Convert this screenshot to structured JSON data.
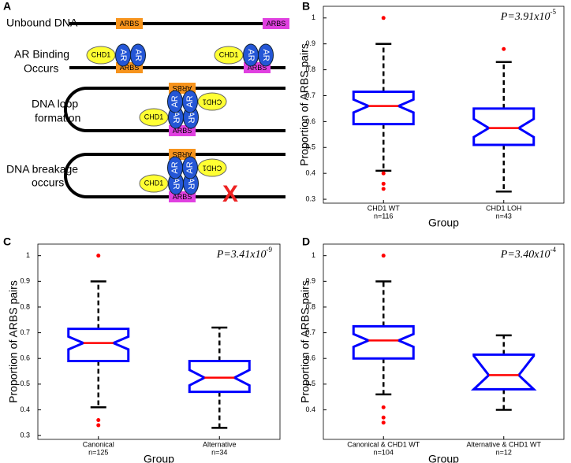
{
  "diagram": {
    "panel_label": "A",
    "steps": [
      {
        "lines": [
          "Unbound DNA"
        ]
      },
      {
        "lines": [
          "AR Binding",
          "Occurs"
        ]
      },
      {
        "lines": [
          "DNA loop",
          "formation"
        ]
      },
      {
        "lines": [
          "DNA breakage",
          "occurs"
        ]
      }
    ],
    "site_label": "ARBS",
    "protein_label": "CHD1",
    "receptor_label": "AR",
    "break_mark": "X"
  },
  "chart_data": [
    {
      "type": "box",
      "panel_label": "B",
      "categories": [
        "CHD1 WT",
        "CHD1 LOH"
      ],
      "n_labels": [
        "n=116",
        "n=43"
      ],
      "xlabel": "Group",
      "ylabel": "Proportion of ARBS pairs",
      "annotation": {
        "text": "P=3.91x10",
        "exponent": "-5"
      },
      "ylim": [
        0.285,
        1.045
      ],
      "yticks": [
        0.3,
        0.4,
        0.5,
        0.6,
        0.7,
        0.8,
        0.9,
        1
      ],
      "box_color": "#0000ff",
      "median_color": "#ff0000",
      "outlier_color": "#ff0000",
      "boxes": [
        {
          "whisker_low": 0.41,
          "q1": 0.59,
          "median": 0.66,
          "q3": 0.715,
          "whisker_high": 0.9,
          "notch": [
            0.635,
            0.685
          ],
          "outliers": [
            1.0,
            0.4,
            0.36,
            0.34
          ]
        },
        {
          "whisker_low": 0.33,
          "q1": 0.51,
          "median": 0.575,
          "q3": 0.65,
          "whisker_high": 0.83,
          "notch": [
            0.54,
            0.61
          ],
          "outliers": [
            0.88
          ]
        }
      ]
    },
    {
      "type": "box",
      "panel_label": "C",
      "categories": [
        "Canonical",
        "Alternative"
      ],
      "n_labels": [
        "n=125",
        "n=34"
      ],
      "xlabel": "Group",
      "ylabel": "Proportion of ARBS pairs",
      "annotation": {
        "text": "P=3.41x10",
        "exponent": "-9"
      },
      "ylim": [
        0.285,
        1.045
      ],
      "yticks": [
        0.3,
        0.4,
        0.5,
        0.6,
        0.7,
        0.8,
        0.9,
        1
      ],
      "box_color": "#0000ff",
      "median_color": "#ff0000",
      "outlier_color": "#ff0000",
      "boxes": [
        {
          "whisker_low": 0.41,
          "q1": 0.59,
          "median": 0.66,
          "q3": 0.715,
          "whisker_high": 0.9,
          "notch": [
            0.635,
            0.685
          ],
          "outliers": [
            1.0,
            0.36,
            0.34
          ]
        },
        {
          "whisker_low": 0.33,
          "q1": 0.47,
          "median": 0.525,
          "q3": 0.59,
          "whisker_high": 0.72,
          "notch": [
            0.495,
            0.555
          ],
          "outliers": []
        }
      ]
    },
    {
      "type": "box",
      "panel_label": "D",
      "categories": [
        "Canonical & CHD1 WT",
        "Alternative & CHD1 WT"
      ],
      "n_labels": [
        "n=104",
        "n=12"
      ],
      "xlabel": "Group",
      "ylabel": "Proportion of ARBS pairs",
      "annotation": {
        "text": "P=3.40x10",
        "exponent": "-4"
      },
      "ylim": [
        0.285,
        1.045
      ],
      "yticks": [
        0.4,
        0.5,
        0.6,
        0.7,
        0.8,
        0.9,
        1
      ],
      "box_color": "#0000ff",
      "median_color": "#ff0000",
      "outlier_color": "#ff0000",
      "boxes": [
        {
          "whisker_low": 0.46,
          "q1": 0.6,
          "median": 0.67,
          "q3": 0.725,
          "whisker_high": 0.9,
          "notch": [
            0.645,
            0.695
          ],
          "outliers": [
            1.0,
            0.41,
            0.37,
            0.35
          ]
        },
        {
          "whisker_low": 0.4,
          "q1": 0.48,
          "median": 0.535,
          "q3": 0.615,
          "whisker_high": 0.69,
          "notch": [
            0.48,
            0.61
          ],
          "outliers": []
        }
      ]
    }
  ]
}
